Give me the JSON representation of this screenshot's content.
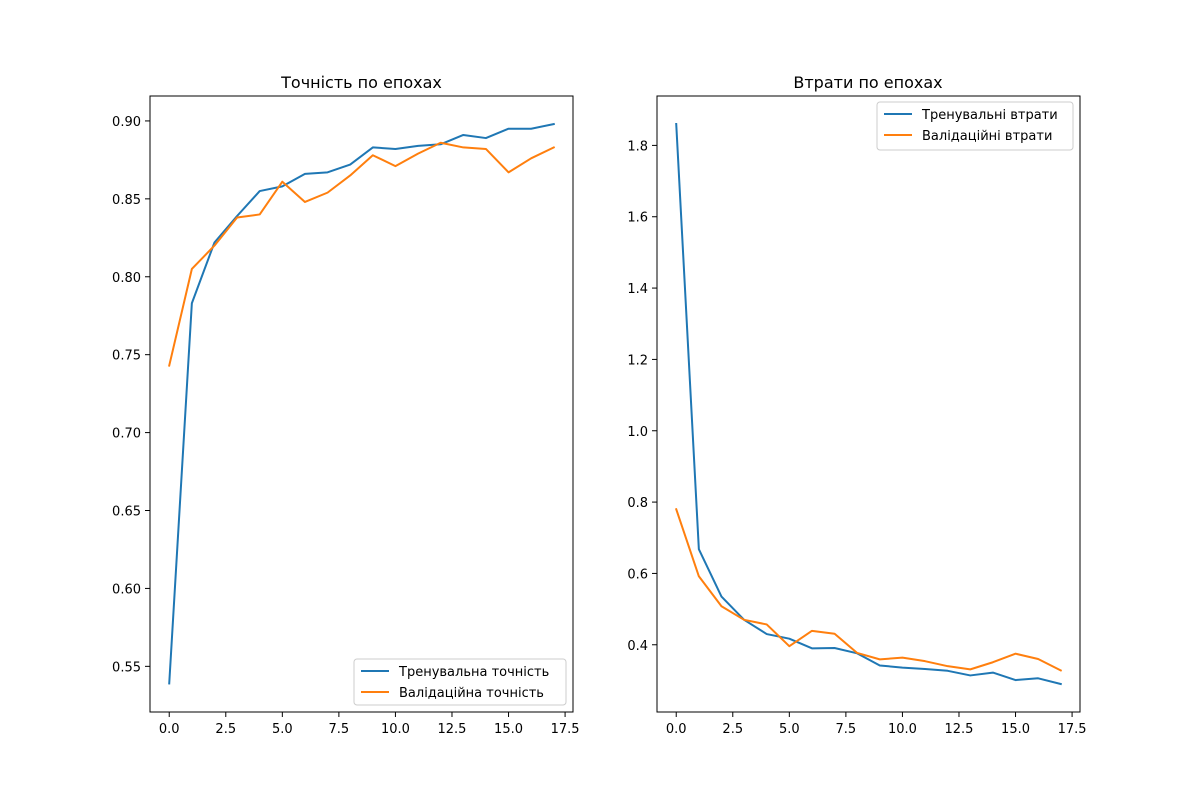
{
  "chart_data": [
    {
      "type": "line",
      "title": "Точність по епохах",
      "xlabel": "",
      "ylabel": "",
      "xlim": [
        -0.85,
        17.85
      ],
      "ylim": [
        0.5207,
        0.916
      ],
      "xticks": [
        "0.0",
        "2.5",
        "5.0",
        "7.5",
        "10.0",
        "12.5",
        "15.0",
        "17.5"
      ],
      "yticks": [
        "0.55",
        "0.60",
        "0.65",
        "0.70",
        "0.75",
        "0.80",
        "0.85",
        "0.90"
      ],
      "legend_position": "lower-right",
      "x": [
        0,
        1,
        2,
        3,
        4,
        5,
        6,
        7,
        8,
        9,
        10,
        11,
        12,
        13,
        14,
        15,
        16,
        17
      ],
      "series": [
        {
          "name": "Тренувальна точність",
          "color": "#1f77b4",
          "values": [
            0.539,
            0.783,
            0.822,
            0.839,
            0.855,
            0.858,
            0.866,
            0.867,
            0.872,
            0.883,
            0.882,
            0.884,
            0.885,
            0.891,
            0.889,
            0.895,
            0.895,
            0.898
          ]
        },
        {
          "name": "Валідаційна точність",
          "color": "#ff7f0e",
          "values": [
            0.743,
            0.805,
            0.82,
            0.838,
            0.84,
            0.861,
            0.848,
            0.854,
            0.865,
            0.878,
            0.871,
            0.879,
            0.886,
            0.883,
            0.882,
            0.867,
            0.876,
            0.883
          ]
        }
      ]
    },
    {
      "type": "line",
      "title": "Втрати по епохах",
      "xlabel": "",
      "ylabel": "",
      "xlim": [
        -0.85,
        17.85
      ],
      "ylim": [
        0.2115,
        1.9385
      ],
      "xticks": [
        "0.0",
        "2.5",
        "5.0",
        "7.5",
        "10.0",
        "12.5",
        "15.0",
        "17.5"
      ],
      "yticks": [
        "0.4",
        "0.6",
        "0.8",
        "1.0",
        "1.2",
        "1.4",
        "1.6",
        "1.8"
      ],
      "legend_position": "upper-right",
      "x": [
        0,
        1,
        2,
        3,
        4,
        5,
        6,
        7,
        8,
        9,
        10,
        11,
        12,
        13,
        14,
        15,
        16,
        17
      ],
      "series": [
        {
          "name": "Тренувальні втрати",
          "color": "#1f77b4",
          "values": [
            1.86,
            0.668,
            0.535,
            0.47,
            0.43,
            0.417,
            0.39,
            0.391,
            0.376,
            0.342,
            0.336,
            0.332,
            0.327,
            0.314,
            0.322,
            0.301,
            0.306,
            0.29
          ]
        },
        {
          "name": "Валідаційні втрати",
          "color": "#ff7f0e",
          "values": [
            0.78,
            0.592,
            0.508,
            0.47,
            0.457,
            0.396,
            0.439,
            0.431,
            0.377,
            0.359,
            0.364,
            0.354,
            0.34,
            0.331,
            0.351,
            0.375,
            0.36,
            0.328
          ]
        }
      ]
    }
  ]
}
